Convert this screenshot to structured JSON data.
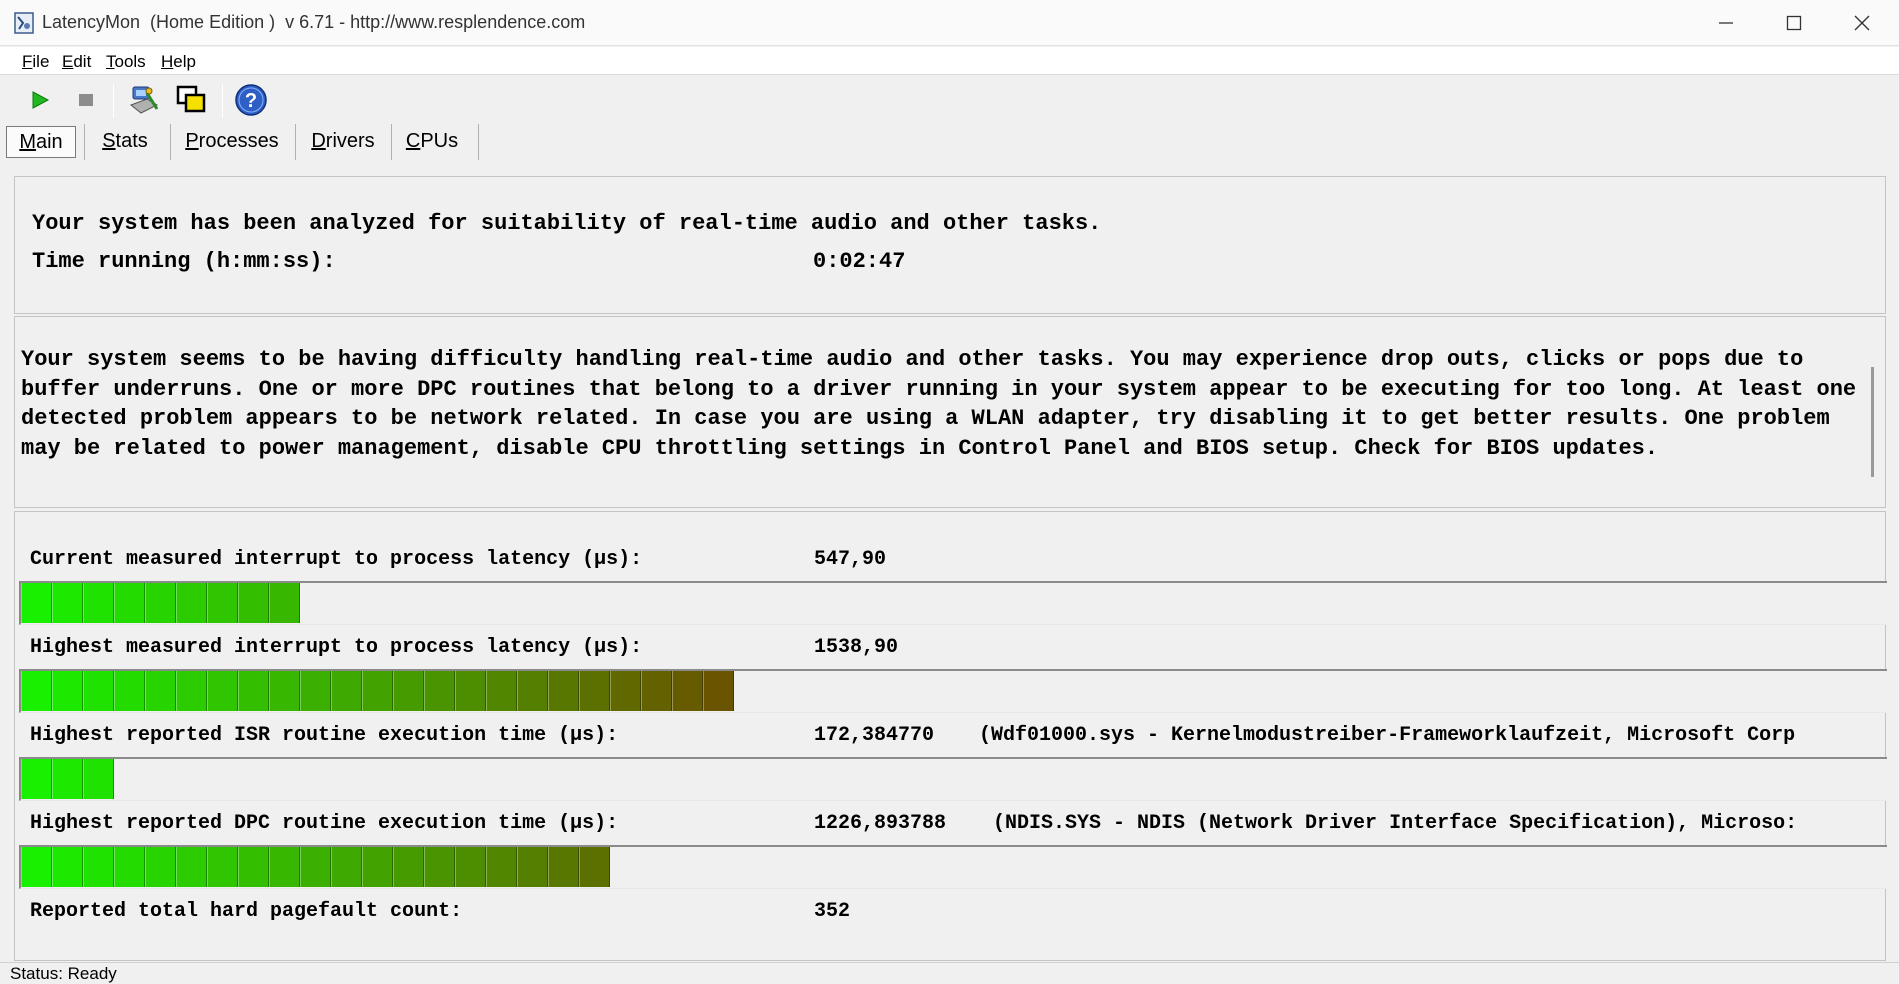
{
  "window": {
    "title": "LatencyMon  (Home Edition )  v 6.71 - http://www.resplendence.com"
  },
  "menu": [
    {
      "key": "F",
      "rest": "ile"
    },
    {
      "key": "E",
      "rest": "dit"
    },
    {
      "key": "T",
      "rest": "ools"
    },
    {
      "key": "H",
      "rest": "elp"
    }
  ],
  "toolbar": {
    "icons": [
      "play-icon",
      "stop-icon",
      "driver-icon",
      "windows-icon",
      "help-icon"
    ]
  },
  "tabs": [
    {
      "key": "M",
      "rest": "ain",
      "active": true
    },
    {
      "key": "S",
      "rest": "tats",
      "active": false
    },
    {
      "key": "P",
      "rest": "rocesses",
      "active": false
    },
    {
      "key": "D",
      "rest": "rivers",
      "active": false
    },
    {
      "key": "C",
      "rest": "PUs",
      "active": false
    }
  ],
  "main": {
    "summary": "Your system has been analyzed for suitability of real-time audio and other tasks.",
    "time_label": "Time running (h:mm:ss):",
    "time_value": "0:02:47",
    "diagnosis": "Your system seems to be having difficulty handling real-time audio and other tasks. You may experience drop outs, clicks or pops due to buffer underruns. One or more DPC routines that belong to a driver running in your system appear to be executing for too long. At least one detected problem appears to be network related. In case you are using a WLAN adapter, try disabling it to get better results. One problem may be related to power management, disable CPU throttling settings in Control Panel and BIOS setup. Check for BIOS updates."
  },
  "metrics": [
    {
      "label": "Current measured interrupt to process latency (µs):",
      "value": "547,90",
      "extra": "",
      "segments": 9
    },
    {
      "label": "Highest measured interrupt to process latency (µs):",
      "value": "1538,90",
      "extra": "",
      "segments": 23
    },
    {
      "label": "Highest reported ISR routine execution time (µs):",
      "value": "172,384770",
      "extra": "(Wdf01000.sys - Kernelmodustreiber-Frameworklaufzeit, Microsoft Corp",
      "segments": 3
    },
    {
      "label": "Highest reported DPC routine execution time (µs):",
      "value": "1226,893788",
      "extra": "(NDIS.SYS - NDIS (Network Driver Interface Specification), Microso:",
      "segments": 19
    },
    {
      "label": "Reported total hard pagefault count:",
      "value": "352",
      "extra": ""
    }
  ],
  "status": "Status: Ready",
  "colors": {
    "seg_start": "#19f000",
    "seg_end": "#6b5400"
  }
}
